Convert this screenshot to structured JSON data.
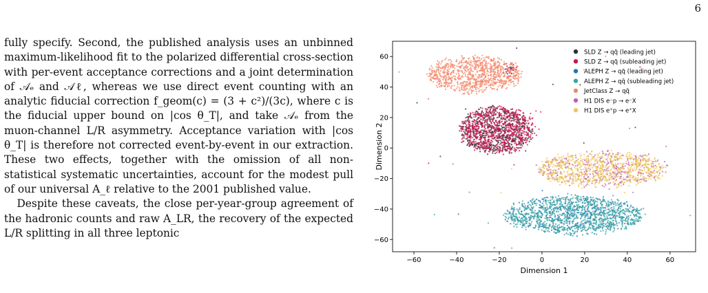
{
  "page": {
    "number": "6"
  },
  "body": {
    "paragraphs": [
      "fully specify. Second, the published analysis uses an unbinned maximum-likelihood fit to the polarized differential cross-section with per-event acceptance corrections and a joint determination of 𝒜ₑ and 𝒜ℓ, whereas we use direct event counting with an analytic fiducial correction f_geom(c) = (3 + c²)/(3c), where c is the fiducial upper bound on |cos θ_T|, and take 𝒜ₑ from the muon-channel L/R asymmetry. Acceptance variation with |cos θ_T| is therefore not corrected event-by-event in our extraction. These two effects, together with the omission of all non-statistical systematic uncertainties, account for the modest pull of our universal A_ℓ relative to the 2001 published value.",
      "Despite these caveats, the close per-year-group agreement of the hadronic counts and raw A_LR, the recovery of the expected L/R splitting in all three leptonic"
    ]
  },
  "chart_data": {
    "type": "scatter",
    "xlabel": "Dimension 1",
    "ylabel": "Dimension 2",
    "xlim": [
      -70,
      72
    ],
    "ylim": [
      -68,
      70
    ],
    "xticks": [
      -60,
      -40,
      -20,
      0,
      20,
      40,
      60
    ],
    "yticks": [
      -60,
      -40,
      -20,
      0,
      20,
      40,
      60
    ],
    "legend_position": "top-right",
    "series": [
      {
        "name": "SLD Z → qq̄ (leading jet)",
        "color": "#2b2f3a",
        "clusters": [
          {
            "cx": -22,
            "cy": 12,
            "rx": 17,
            "ry": 15,
            "n": 500
          },
          {
            "cx": -15,
            "cy": 51,
            "rx": 2,
            "ry": 2,
            "n": 10
          }
        ]
      },
      {
        "name": "SLD Z → qq̄ (subleading jet)",
        "color": "#c8174f",
        "clusters": [
          {
            "cx": -21,
            "cy": 12,
            "rx": 17,
            "ry": 15,
            "n": 900
          },
          {
            "cx": -15,
            "cy": 52,
            "rx": 2,
            "ry": 2,
            "n": 20
          }
        ]
      },
      {
        "name": "ALEPH Z → qq̄ (leading jet)",
        "color": "#1f77b4",
        "clusters": [
          {
            "cx": 15,
            "cy": -44,
            "rx": 32,
            "ry": 12,
            "n": 450
          }
        ]
      },
      {
        "name": "ALEPH Z → qq̄ (subleading jet)",
        "color": "#3aa6a3",
        "clusters": [
          {
            "cx": 15,
            "cy": -44,
            "rx": 32,
            "ry": 12,
            "n": 1000
          }
        ]
      },
      {
        "name": "JetClass Z → qq̄",
        "color": "#f4876a",
        "clusters": [
          {
            "cx": -32,
            "cy": 48,
            "rx": 22,
            "ry": 11,
            "n": 900
          }
        ]
      },
      {
        "name": "H1 DIS e⁻p → e⁻X",
        "color": "#c45fb5",
        "clusters": [
          {
            "cx": 28,
            "cy": -14,
            "rx": 30,
            "ry": 11,
            "n": 350
          }
        ]
      },
      {
        "name": "H1 DIS e⁺p → e⁺X",
        "color": "#eec85a",
        "clusters": [
          {
            "cx": 28,
            "cy": -14,
            "rx": 30,
            "ry": 11,
            "n": 800
          }
        ]
      }
    ]
  }
}
